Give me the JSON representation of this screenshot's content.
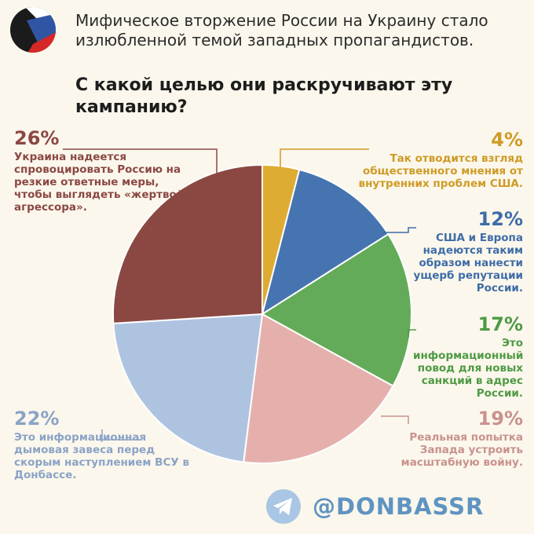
{
  "title_line1": "Мифическое вторжение России на Украину стало излюбленной темой западных пропагандистов.",
  "title_line2": "С какой целью они раскручивают эту кампанию?",
  "handle": "@DONBASSR",
  "chart_data": {
    "type": "pie",
    "categories": [
      "Так отводится взгляд общественного мнения от внутренних проблем США.",
      "США и Европа надеются таким образом нанести ущерб репутации России.",
      "Это информационный повод для новых санкций в адрес России.",
      "Реальная попытка Запада устроить масштабную войну.",
      "Это информационная дымовая завеса перед скорым наступлением ВСУ в Донбассе.",
      "Украина надеется спровоцировать Россию на резкие ответные меры, чтобы выглядеть «жертвой агрессора»."
    ],
    "values": [
      4,
      12,
      17,
      19,
      22,
      26
    ],
    "value_labels": [
      "4%",
      "12%",
      "17%",
      "19%",
      "22%",
      "26%"
    ],
    "colors": [
      "#deac33",
      "#4674b0",
      "#63ab59",
      "#e5b0ac",
      "#aec3e0",
      "#8b4843"
    ],
    "label_colors": [
      "#cf9b25",
      "#3e6ca8",
      "#4f9a44",
      "#c9928e",
      "#8ba3c6",
      "#8b4843"
    ],
    "start_angle_deg": 0,
    "direction": "clockwise"
  }
}
